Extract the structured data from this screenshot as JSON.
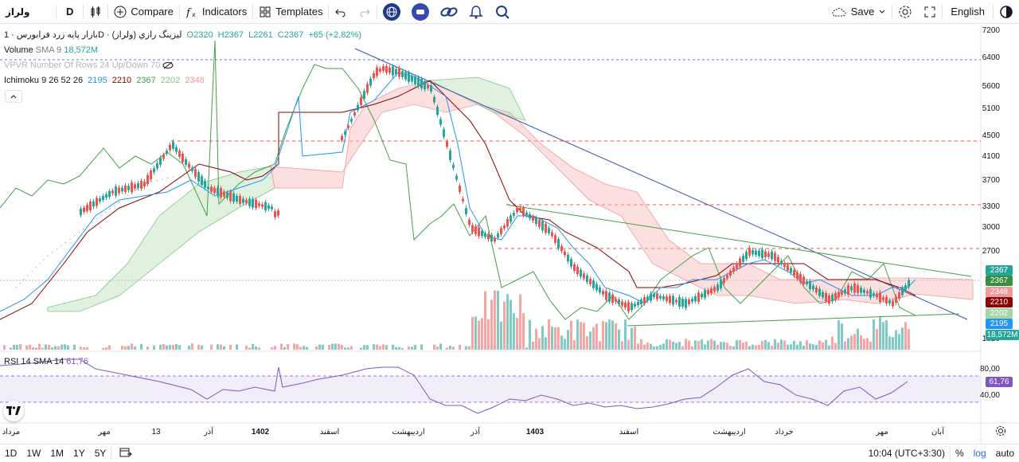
{
  "toolbar": {
    "symbol": "ولراز",
    "interval": "D",
    "compare_label": "Compare",
    "indicators_label": "Indicators",
    "templates_label": "Templates",
    "save_label": "Save",
    "language_label": "English"
  },
  "legend": {
    "title": "بازار پایه زرد فرابورس · 1D · ليزينگ رازي (ولراز)",
    "ohlc": {
      "o": "O2320",
      "h": "H2367",
      "l": "L2261",
      "c": "C2367",
      "chg": "+65 (+2,82%)"
    },
    "volume_label": "Volume",
    "volume_params": "SMA 9",
    "volume_value": "18,572M",
    "vpvr_label": "VPVR Number Of Rows 24 Up/Down 70",
    "ichimoku_label": "Ichimoku",
    "ichimoku_params": "9 26 52 26",
    "ichimoku_values": [
      "2195",
      "2210",
      "2367",
      "2202",
      "2348"
    ],
    "rsi_label": "RSI",
    "rsi_params": "14 SMA 14",
    "rsi_value": "61,76"
  },
  "price_axis": {
    "ticks": [
      "7200",
      "6400",
      "5600",
      "5100",
      "4500",
      "4100",
      "3700",
      "3300",
      "3000",
      "2700",
      "1820"
    ],
    "badges": [
      {
        "text": "2367",
        "color": "#26a69a"
      },
      {
        "text": "2367",
        "color": "#388e3c"
      },
      {
        "text": "2348",
        "color": "#ef9a9a"
      },
      {
        "text": "2210",
        "color": "#8b0000"
      },
      {
        "text": "2202",
        "color": "#a5d6a7"
      },
      {
        "text": "2195",
        "color": "#2196f3"
      },
      {
        "text": "18,572M",
        "color": "#26a69a"
      }
    ]
  },
  "rsi_axis": {
    "ticks": [
      "80,00",
      "40,00"
    ],
    "badge": "61,76"
  },
  "time_axis": [
    "مرداد",
    "مهر",
    "13",
    "آذر",
    "1402",
    "اسفند",
    "اردیبهشت",
    "آذر",
    "1403",
    "اسفند",
    "اردیبهشت",
    "خرداد",
    "مهر",
    "آبان"
  ],
  "bottom": {
    "ranges": [
      "1D",
      "1W",
      "1M",
      "1Y",
      "5Y"
    ],
    "clock": "10:04 (UTC+3:30)",
    "percent_label": "%",
    "log_label": "log",
    "auto_label": "auto"
  },
  "colors": {
    "up": "#26a69a",
    "down": "#ef5350",
    "accent": "#2962ff",
    "rsi": "#7e57c2"
  }
}
